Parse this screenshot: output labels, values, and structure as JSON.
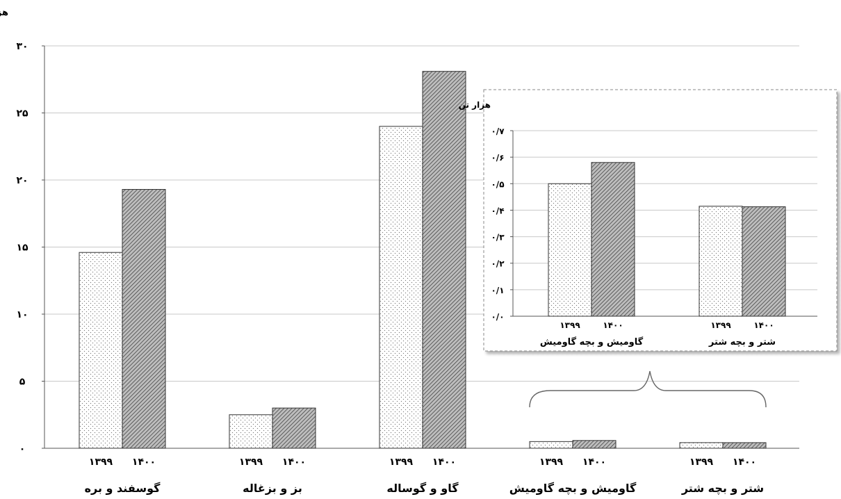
{
  "chart_data": [
    {
      "type": "bar",
      "unit_label": "هزار تن",
      "categories": [
        "گوسفند و بره",
        "بز و بزغاله",
        "گاو و گوساله",
        "گاومیش و بچه گاومیش",
        "شتر و بچه شتر"
      ],
      "series": [
        {
          "name": "۱۳۹۹",
          "values": [
            14.6,
            2.5,
            24.0,
            0.5,
            0.42
          ]
        },
        {
          "name": "۱۴۰۰",
          "values": [
            19.3,
            3.0,
            28.1,
            0.58,
            0.42
          ]
        }
      ],
      "yticks": [
        "۰",
        "۵",
        "۱۰",
        "۱۵",
        "۲۰",
        "۲۵",
        "۳۰"
      ],
      "ylim": [
        0,
        30
      ],
      "grid": true
    },
    {
      "type": "bar",
      "unit_label": "هزار تن",
      "categories": [
        "گاومیش و بچه گاومیش",
        "شتر و بچه شتر"
      ],
      "series": [
        {
          "name": "۱۳۹۹",
          "values": [
            0.5,
            0.415
          ]
        },
        {
          "name": "۱۴۰۰",
          "values": [
            0.58,
            0.413
          ]
        }
      ],
      "yticks": [
        "۰/۰",
        "۰/۱",
        "۰/۲",
        "۰/۳",
        "۰/۴",
        "۰/۵",
        "۰/۶",
        "۰/۷"
      ],
      "ylim": [
        0,
        0.7
      ],
      "grid": true
    }
  ]
}
